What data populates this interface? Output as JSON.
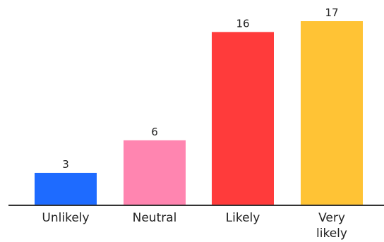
{
  "chart_data": {
    "type": "bar",
    "title": "",
    "xlabel": "",
    "ylabel": "",
    "categories": [
      [
        "Unlikely"
      ],
      [
        "Neutral"
      ],
      [
        "Likely"
      ],
      [
        "Very",
        "likely"
      ]
    ],
    "values": [
      3,
      6,
      16,
      17
    ],
    "value_labels": [
      "3",
      "6",
      "16",
      "17"
    ],
    "colors": [
      "#1E6BFF",
      "#FF85B0",
      "#FF3B3B",
      "#FFC335"
    ],
    "ylim": [
      0,
      17
    ],
    "grid": false,
    "legend": "none",
    "axis_color": "#333333"
  }
}
